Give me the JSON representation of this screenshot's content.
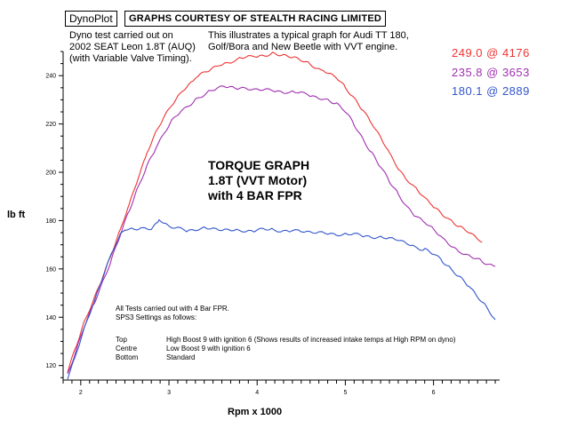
{
  "header": {
    "brand": "DynoPlot",
    "courtesy": "GRAPHS COURTESY OF STEALTH RACING LIMITED"
  },
  "notes": {
    "left": [
      "Dyno test carried out on",
      "2002 SEAT Leon 1.8T (AUQ)",
      "(with Variable Valve Timing)."
    ],
    "right": [
      "This illustrates a typical graph for Audi TT 180,",
      "Golf/Bora and New Beetle with VVT engine."
    ]
  },
  "peaks": [
    {
      "text": "249.0 @ 4176",
      "color": "#ee3333"
    },
    {
      "text": "235.8 @ 3653",
      "color": "#a030b0"
    },
    {
      "text": "180.1 @ 2889",
      "color": "#3355cc"
    }
  ],
  "graph_title": [
    "TORQUE GRAPH",
    "1.8T (VVT Motor)",
    "with 4 BAR FPR"
  ],
  "test_notes": [
    "All Tests carried out with 4 Bar FPR.",
    "SPS3 Settings as follows:"
  ],
  "settings": [
    {
      "name": "Top",
      "desc": "High Boost 9 with ignition 6 (Shows results of increased intake temps at High RPM on dyno)"
    },
    {
      "name": "Centre",
      "desc": "Low Boost 9 with ignition 6"
    },
    {
      "name": "Bottom",
      "desc": "Standard"
    }
  ],
  "chart_data": {
    "type": "line",
    "title": "TORQUE GRAPH",
    "xlabel": "Rpm x 1000",
    "ylabel": "lb ft",
    "xlim": [
      1.8,
      6.75
    ],
    "ylim": [
      114,
      250
    ],
    "xticks": [
      2,
      3,
      4,
      5,
      6
    ],
    "yticks": [
      120,
      140,
      160,
      180,
      200,
      220,
      240
    ],
    "series": [
      {
        "name": "Top",
        "color": "#ee3333",
        "x": [
          1.85,
          1.95,
          2.05,
          2.15,
          2.25,
          2.35,
          2.45,
          2.55,
          2.65,
          2.75,
          2.85,
          2.95,
          3.05,
          3.15,
          3.3,
          3.45,
          3.6,
          3.8,
          4.0,
          4.176,
          4.3,
          4.45,
          4.6,
          4.75,
          4.9,
          5.0,
          5.1,
          5.2,
          5.3,
          5.4,
          5.5,
          5.6,
          5.7,
          5.8,
          5.9,
          6.0,
          6.1,
          6.2,
          6.3,
          6.4,
          6.55
        ],
        "y": [
          117,
          128,
          139,
          148,
          157,
          166,
          176,
          187,
          198,
          208,
          216,
          223,
          229,
          234,
          239,
          242,
          245,
          247,
          248,
          249,
          248,
          247,
          245,
          242,
          239,
          235,
          231,
          226,
          220,
          214,
          208,
          202,
          197,
          193,
          189,
          186,
          183,
          180,
          177,
          175,
          171
        ]
      },
      {
        "name": "Centre",
        "color": "#a030b0",
        "x": [
          1.85,
          1.95,
          2.05,
          2.15,
          2.25,
          2.35,
          2.45,
          2.55,
          2.65,
          2.75,
          2.85,
          2.95,
          3.05,
          3.15,
          3.3,
          3.45,
          3.653,
          3.8,
          4.0,
          4.2,
          4.4,
          4.6,
          4.8,
          4.9,
          5.0,
          5.1,
          5.2,
          5.3,
          5.4,
          5.5,
          5.6,
          5.7,
          5.8,
          5.9,
          6.0,
          6.1,
          6.2,
          6.3,
          6.4,
          6.55,
          6.7
        ],
        "y": [
          116,
          126,
          137,
          146,
          155,
          164,
          174,
          184,
          194,
          203,
          210,
          216,
          222,
          226,
          230,
          233,
          235.8,
          235,
          234,
          234,
          233,
          232,
          230,
          228,
          225,
          220,
          214,
          208,
          202,
          196,
          191,
          186,
          182,
          179,
          176,
          173,
          170,
          167,
          165,
          163,
          161
        ]
      },
      {
        "name": "Bottom",
        "color": "#3355cc",
        "x": [
          1.85,
          1.95,
          2.05,
          2.15,
          2.25,
          2.35,
          2.45,
          2.5,
          2.6,
          2.7,
          2.8,
          2.889,
          3.0,
          3.2,
          3.4,
          3.6,
          3.8,
          4.0,
          4.2,
          4.4,
          4.6,
          4.8,
          5.0,
          5.2,
          5.4,
          5.6,
          5.8,
          5.9,
          6.0,
          6.1,
          6.2,
          6.3,
          6.4,
          6.5,
          6.6,
          6.7
        ],
        "y": [
          115,
          125,
          136,
          146,
          157,
          167,
          174,
          176,
          176,
          177,
          177,
          180.1,
          177,
          176,
          177,
          176,
          176,
          176,
          176,
          176,
          175,
          175,
          174,
          174,
          173,
          172,
          169,
          168,
          166,
          163,
          160,
          157,
          153,
          148,
          144,
          139
        ]
      }
    ]
  }
}
